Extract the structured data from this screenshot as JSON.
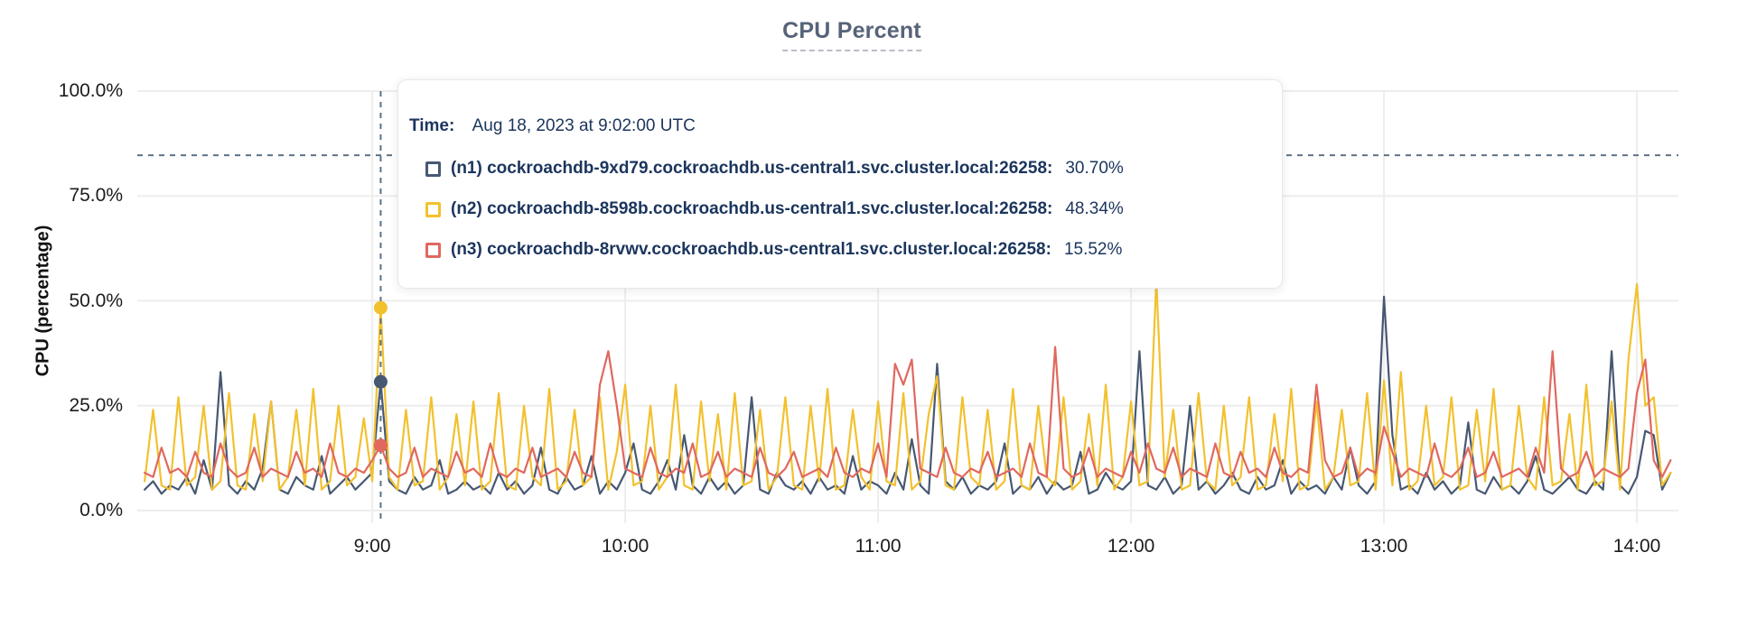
{
  "title": {
    "text": "CPU Percent"
  },
  "y_axis": {
    "label": "CPU (percentage)"
  },
  "tooltip": {
    "time_label": "Time:",
    "time_value": "Aug 18, 2023 at 9:02:00 UTC",
    "rows": [
      {
        "name": "(n1) cockroachdb-9xd79.cockroachdb.us-central1.svc.cluster.local:26258:",
        "value": "30.70%",
        "value_pct": 30.7,
        "color": "#475872"
      },
      {
        "name": "(n2) cockroachdb-8598b.cockroachdb.us-central1.svc.cluster.local:26258:",
        "value": "48.34%",
        "value_pct": 48.34,
        "color": "#F2C12E"
      },
      {
        "name": "(n3) cockroachdb-8rvwv.cockroachdb.us-central1.svc.cluster.local:26258:",
        "value": "15.52%",
        "value_pct": 15.52,
        "color": "#E0685F"
      }
    ]
  },
  "crosshair": {
    "time_hour": 9.0333,
    "horizontal_pct": 84.7
  },
  "colors": {
    "background": "#ffffff",
    "grid": "#ededed",
    "axis_text": "#1c1c1c",
    "title_text": "#566379",
    "tooltip_text": "#1B355D",
    "crosshair": "#5d7287"
  },
  "chart_data": {
    "type": "line",
    "title": "CPU Percent",
    "xlabel": "",
    "ylabel": "CPU (percentage)",
    "ylim": [
      0,
      100
    ],
    "xlim_hours": [
      8.071,
      14.164
    ],
    "grid": true,
    "legend_position": "tooltip-overlay",
    "y_tick_values": [
      0,
      25,
      50,
      75,
      100
    ],
    "y_tick_labels": [
      "0.0%",
      "25.0%",
      "50.0%",
      "75.0%",
      "100.0%"
    ],
    "x_tick_hours": [
      9,
      10,
      11,
      12,
      13,
      14
    ],
    "x_tick_labels": [
      "9:00",
      "10:00",
      "11:00",
      "12:00",
      "13:00",
      "14:00"
    ],
    "x_start_hour": 8.1,
    "x_step_hour": 0.0333333,
    "series": [
      {
        "name": "(n1) cockroachdb-9xd79.cockroachdb.us-central1.svc.cluster.local:26258",
        "color": "#475872",
        "values": [
          5,
          7,
          4,
          6,
          5,
          8,
          4,
          12,
          5,
          33,
          6,
          4,
          7,
          5,
          10,
          26,
          5,
          4,
          8,
          6,
          5,
          13,
          4,
          6,
          8,
          5,
          7,
          9,
          30.7,
          7,
          5,
          4,
          8,
          5,
          6,
          12,
          4,
          5,
          7,
          5,
          6,
          4,
          9,
          5,
          7,
          4,
          6,
          15,
          5,
          4,
          8,
          5,
          6,
          13,
          4,
          7,
          5,
          9,
          16,
          5,
          4,
          7,
          12,
          5,
          18,
          6,
          4,
          8,
          5,
          7,
          4,
          6,
          27,
          5,
          4,
          9,
          6,
          5,
          7,
          4,
          8,
          5,
          6,
          4,
          13,
          5,
          7,
          6,
          4,
          9,
          5,
          17,
          6,
          4,
          35,
          7,
          5,
          8,
          4,
          6,
          5,
          7,
          16,
          4,
          6,
          5,
          8,
          4,
          7,
          5,
          6,
          14,
          4,
          5,
          9,
          6,
          5,
          7,
          38,
          6,
          5,
          8,
          4,
          6,
          25,
          5,
          7,
          4,
          6,
          9,
          5,
          4,
          8,
          5,
          6,
          12,
          4,
          7,
          5,
          6,
          4,
          8,
          5,
          15,
          6,
          4,
          7,
          51,
          18,
          5,
          6,
          4,
          9,
          5,
          7,
          4,
          6,
          21,
          5,
          4,
          8,
          5,
          6,
          4,
          7,
          13,
          5,
          4,
          6,
          8,
          5,
          4,
          7,
          5,
          38,
          6,
          4,
          8,
          19,
          18,
          5,
          9
        ]
      },
      {
        "name": "(n2) cockroachdb-8598b.cockroachdb.us-central1.svc.cluster.local:26258",
        "color": "#F2C12E",
        "values": [
          7,
          24,
          6,
          5,
          27,
          6,
          8,
          25,
          5,
          7,
          28,
          6,
          5,
          23,
          7,
          26,
          5,
          8,
          24,
          6,
          29,
          5,
          7,
          25,
          6,
          8,
          22,
          7,
          48.34,
          8,
          5,
          24,
          6,
          7,
          27,
          5,
          8,
          23,
          6,
          26,
          5,
          7,
          28,
          6,
          5,
          25,
          8,
          6,
          29,
          5,
          7,
          24,
          6,
          8,
          27,
          5,
          14,
          30,
          6,
          7,
          25,
          5,
          8,
          30,
          6,
          5,
          26,
          7,
          23,
          5,
          28,
          6,
          7,
          24,
          5,
          8,
          27,
          6,
          5,
          25,
          7,
          29,
          5,
          6,
          24,
          8,
          5,
          26,
          7,
          6,
          28,
          5,
          7,
          23,
          32,
          6,
          5,
          27,
          8,
          6,
          24,
          5,
          7,
          29,
          6,
          5,
          25,
          8,
          6,
          27,
          5,
          7,
          23,
          6,
          30,
          5,
          8,
          26,
          6,
          7,
          55,
          8,
          24,
          5,
          6,
          28,
          7,
          5,
          25,
          6,
          8,
          27,
          5,
          6,
          23,
          7,
          29,
          5,
          6,
          26,
          5,
          8,
          24,
          6,
          7,
          28,
          5,
          31,
          6,
          33,
          5,
          7,
          25,
          6,
          8,
          27,
          5,
          6,
          24,
          7,
          29,
          5,
          6,
          25,
          8,
          5,
          27,
          6,
          7,
          23,
          5,
          30,
          6,
          7,
          26,
          5,
          36,
          54,
          25,
          27,
          6,
          9
        ]
      },
      {
        "name": "(n3) cockroachdb-8rvwv.cockroachdb.us-central1.svc.cluster.local:26258",
        "color": "#E0685F",
        "values": [
          9,
          8,
          15,
          9,
          10,
          8,
          14,
          9,
          8,
          16,
          10,
          8,
          9,
          15,
          8,
          10,
          9,
          8,
          14,
          9,
          10,
          8,
          16,
          9,
          8,
          10,
          9,
          12,
          15.52,
          10,
          8,
          9,
          15,
          8,
          10,
          9,
          8,
          14,
          9,
          10,
          8,
          16,
          9,
          8,
          10,
          9,
          15,
          8,
          9,
          10,
          8,
          14,
          9,
          8,
          30,
          38,
          25,
          10,
          9,
          8,
          15,
          9,
          8,
          10,
          9,
          16,
          8,
          9,
          14,
          8,
          10,
          9,
          8,
          15,
          9,
          8,
          10,
          14,
          8,
          9,
          10,
          8,
          15,
          9,
          8,
          10,
          9,
          16,
          8,
          35,
          30,
          36,
          10,
          9,
          8,
          15,
          9,
          8,
          10,
          9,
          14,
          8,
          9,
          10,
          8,
          16,
          9,
          8,
          39,
          10,
          8,
          9,
          15,
          8,
          10,
          9,
          8,
          14,
          9,
          16,
          10,
          9,
          15,
          8,
          10,
          9,
          8,
          16,
          9,
          8,
          14,
          9,
          10,
          8,
          15,
          9,
          8,
          10,
          9,
          30,
          12,
          8,
          9,
          15,
          8,
          10,
          9,
          20,
          14,
          8,
          10,
          9,
          8,
          16,
          9,
          8,
          10,
          15,
          8,
          9,
          14,
          8,
          9,
          10,
          8,
          15,
          9,
          38,
          10,
          8,
          9,
          14,
          8,
          10,
          9,
          8,
          10,
          28,
          36,
          12,
          8,
          12
        ]
      }
    ]
  }
}
